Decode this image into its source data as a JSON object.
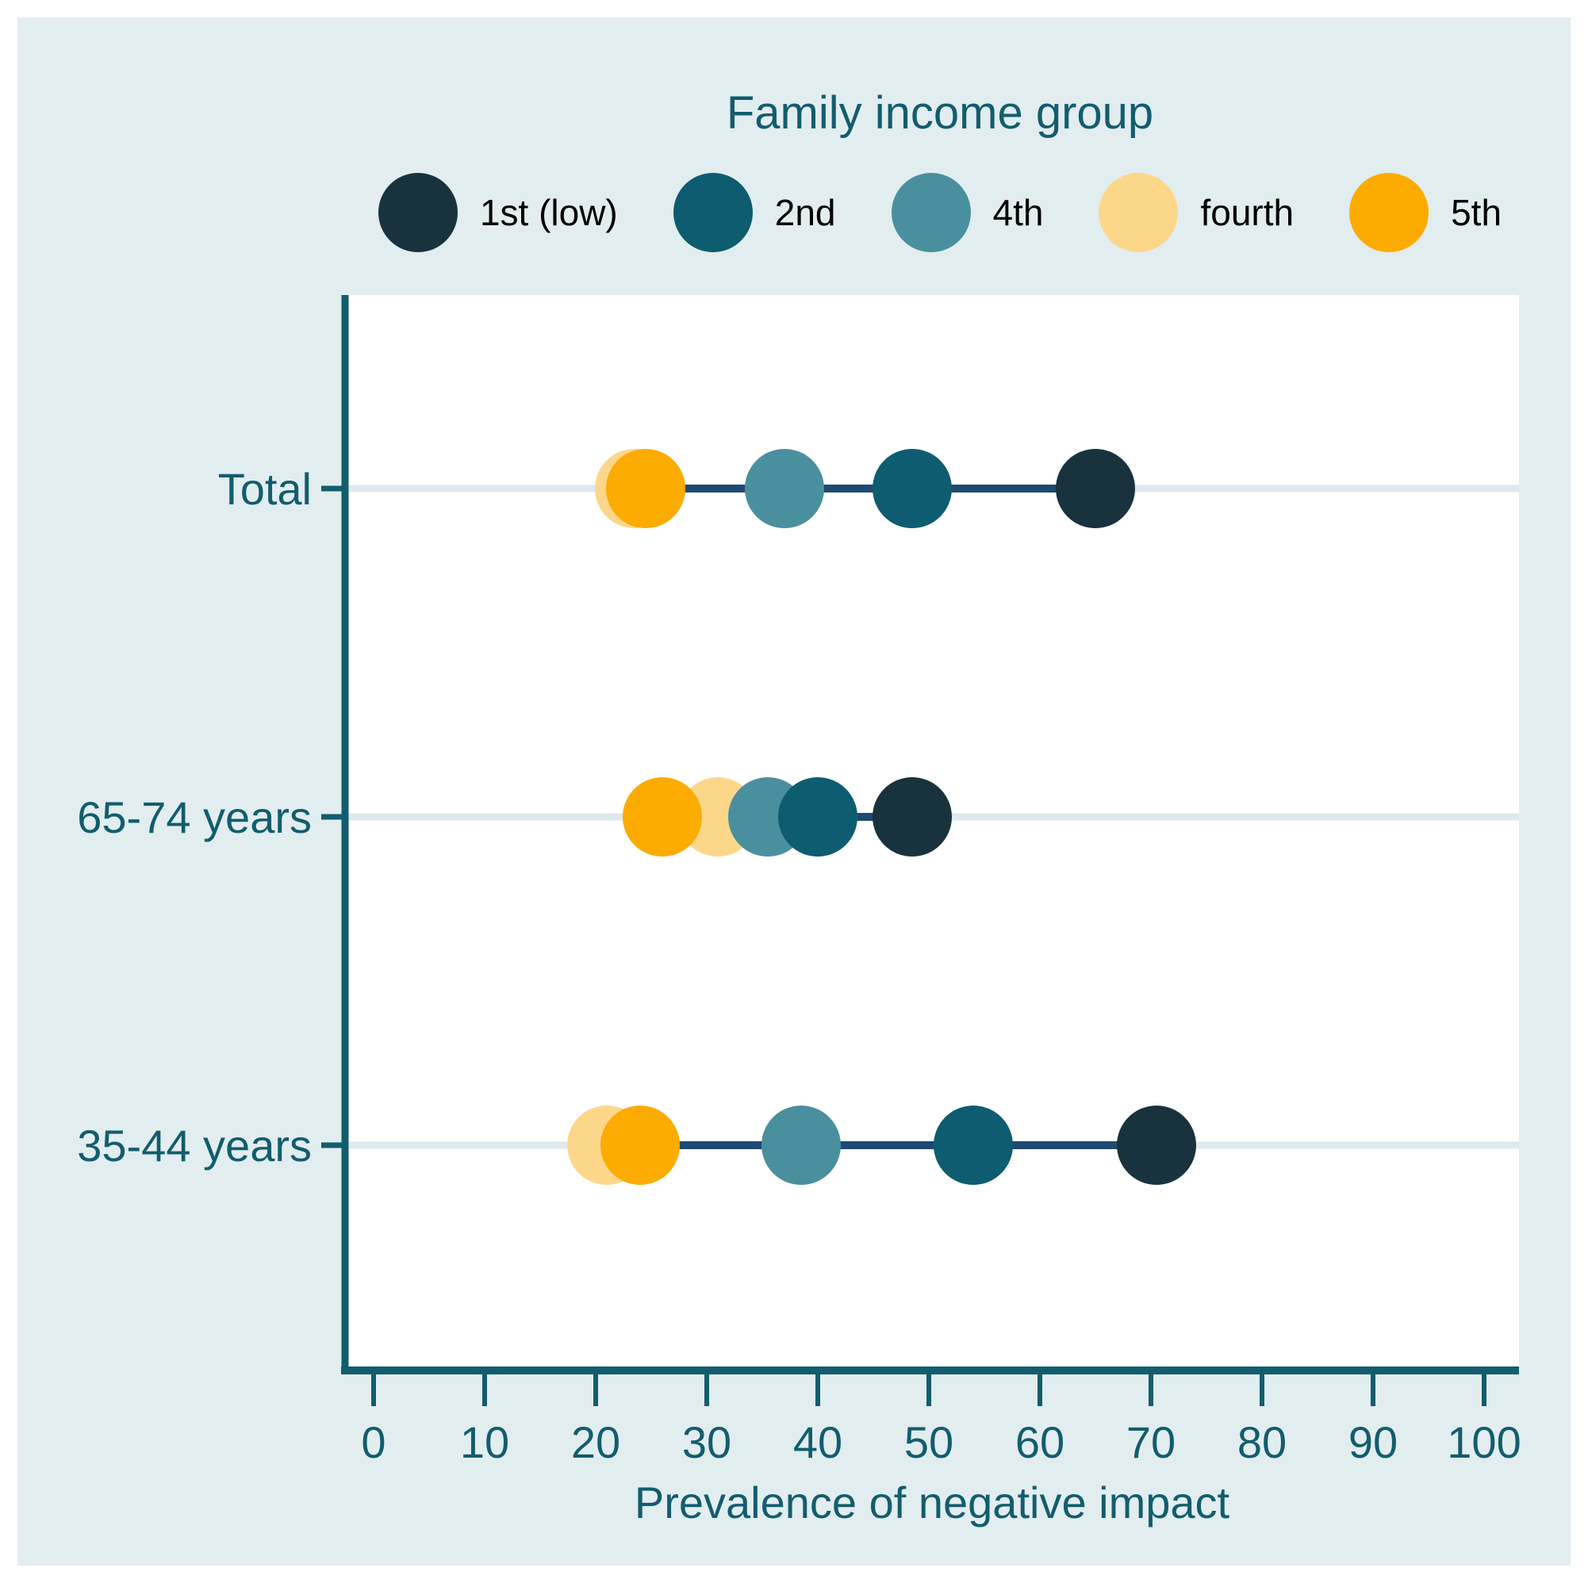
{
  "chart_data": {
    "type": "scatter",
    "variant": "dot-plot",
    "legend_title": "Family income group",
    "legend_position": "top",
    "xlabel": "Prevalence of negative impact",
    "xlim": [
      0,
      100
    ],
    "xticks": [
      0,
      10,
      20,
      30,
      40,
      50,
      60,
      70,
      80,
      90,
      100
    ],
    "grid": "horizontal category gridlines on white plot area",
    "categories": [
      "Total",
      "65-74 years",
      "35-44 years"
    ],
    "series": [
      {
        "name": "1st (low)",
        "color": "#18333d",
        "values": [
          65,
          48.5,
          70.5
        ]
      },
      {
        "name": "2nd",
        "color": "#0d5c70",
        "values": [
          48.5,
          40,
          54
        ]
      },
      {
        "name": "4th",
        "color": "#4a8f9e",
        "values": [
          37,
          35.5,
          38.5
        ]
      },
      {
        "name": "fourth",
        "color": "#fcd78a",
        "values": [
          23.5,
          31,
          21
        ]
      },
      {
        "name": "5th",
        "color": "#fcab00",
        "values": [
          24.5,
          26,
          24
        ]
      }
    ],
    "connector_color": "#1e4a72",
    "colors": {
      "card_background": "#e2edf0",
      "plot_background": "#ffffff",
      "axis": "#125d6d",
      "text": "#125d6d",
      "legend_label_text": "#000000",
      "gridline": "#dde9ed"
    }
  }
}
